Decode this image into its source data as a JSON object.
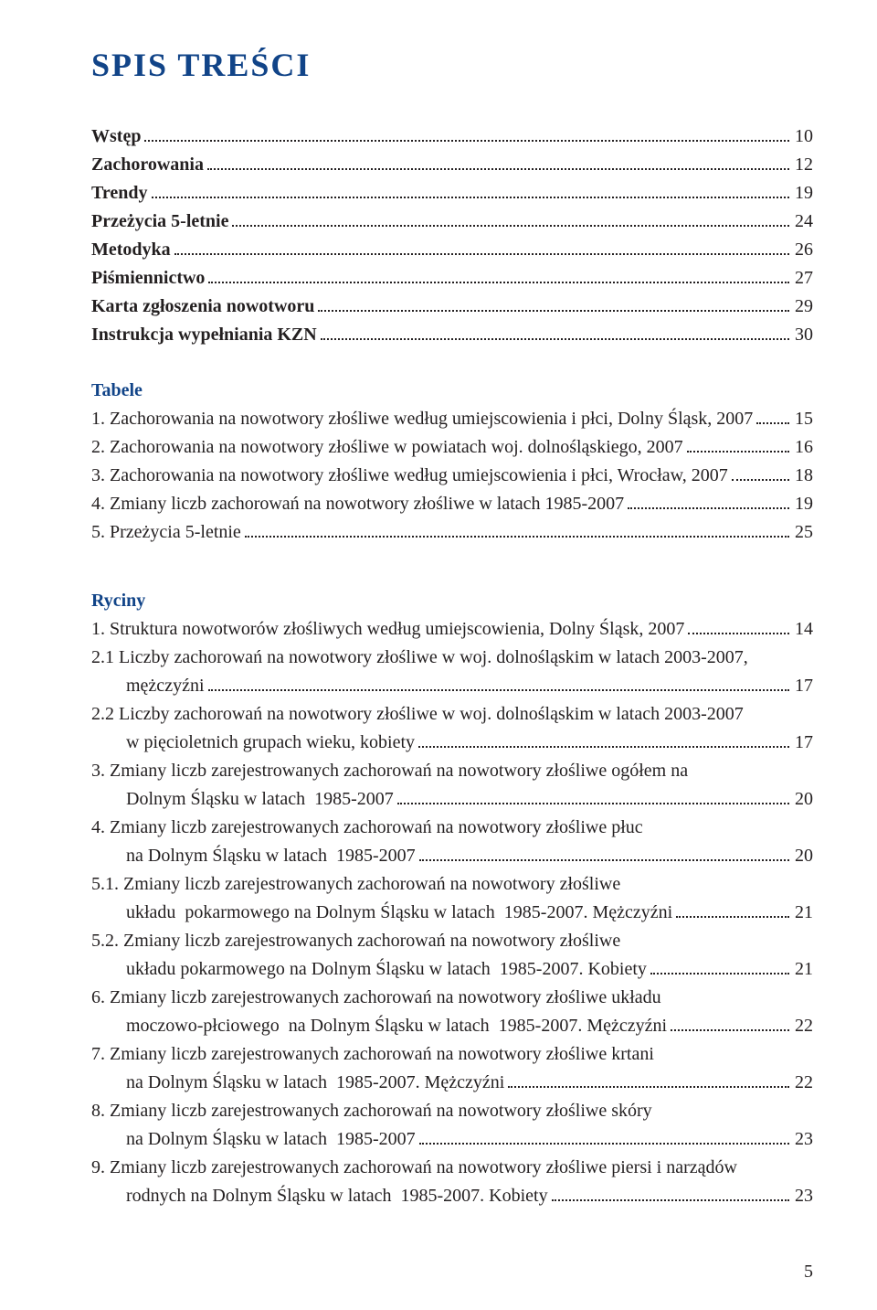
{
  "colors": {
    "heading": "#114488",
    "text": "#231f20",
    "background": "#ffffff",
    "dots": "#231f20"
  },
  "typography": {
    "title_fontsize": 36,
    "body_fontsize": 20,
    "heading_weight": "bold",
    "font_family": "serif"
  },
  "title": "SPIS TREŚCI",
  "main_toc": [
    {
      "label": "Wstęp",
      "page": "10"
    },
    {
      "label": "Zachorowania",
      "page": "12"
    },
    {
      "label": "Trendy",
      "page": "19"
    },
    {
      "label": "Przeżycia 5-letnie",
      "page": "24"
    },
    {
      "label": "Metodyka",
      "page": "26"
    },
    {
      "label": "Piśmiennictwo",
      "page": "27"
    },
    {
      "label": "Karta zgłoszenia nowotworu",
      "page": "29"
    },
    {
      "label": "Instrukcja wypełniania KZN",
      "page": "30"
    }
  ],
  "tabele": {
    "heading": "Tabele",
    "items": [
      {
        "lines": [
          [
            "1. Zachorowania na nowotwory złośliwe według umiejscowienia i płci, Dolny Śląsk, 2007",
            "15"
          ]
        ]
      },
      {
        "lines": [
          [
            "2. Zachorowania na nowotwory złośliwe w powiatach woj. dolnośląskiego, 2007",
            "16"
          ]
        ]
      },
      {
        "lines": [
          [
            "3. Zachorowania na nowotwory złośliwe według umiejscowienia i płci, Wrocław, 2007",
            "18"
          ]
        ]
      },
      {
        "lines": [
          [
            "4. Zmiany liczb zachorowań na nowotwory złośliwe w latach 1985-2007",
            "19"
          ]
        ]
      },
      {
        "lines": [
          [
            "5. Przeżycia 5-letnie",
            "25"
          ]
        ]
      }
    ]
  },
  "ryciny": {
    "heading": "Ryciny",
    "items": [
      {
        "lines": [
          [
            "1. Struktura nowotworów złośliwych według umiejscowienia, Dolny Śląsk, 2007",
            "14"
          ]
        ]
      },
      {
        "lines": [
          [
            "2.1 Liczby zachorowań na nowotwory złośliwe w woj. dolnośląskim w latach 2003-2007,",
            null
          ],
          [
            "mężczyźni",
            "17"
          ]
        ]
      },
      {
        "lines": [
          [
            "2.2 Liczby zachorowań na nowotwory złośliwe w woj. dolnośląskim w latach 2003-2007",
            null
          ],
          [
            "w pięcioletnich grupach wieku, kobiety",
            "17"
          ]
        ]
      },
      {
        "lines": [
          [
            "3. Zmiany liczb zarejestrowanych zachorowań na nowotwory złośliwe ogółem na",
            null
          ],
          [
            "Dolnym Śląsku w latach  1985-2007",
            "20"
          ]
        ]
      },
      {
        "lines": [
          [
            "4. Zmiany liczb zarejestrowanych zachorowań na nowotwory złośliwe płuc",
            null
          ],
          [
            "na Dolnym Śląsku w latach  1985-2007",
            "20"
          ]
        ]
      },
      {
        "lines": [
          [
            "5.1. Zmiany liczb zarejestrowanych zachorowań na nowotwory złośliwe",
            null
          ],
          [
            "układu  pokarmowego na Dolnym Śląsku w latach  1985-2007. Mężczyźni",
            "21"
          ]
        ]
      },
      {
        "lines": [
          [
            "5.2. Zmiany liczb zarejestrowanych zachorowań na nowotwory złośliwe",
            null
          ],
          [
            "układu pokarmowego na Dolnym Śląsku w latach  1985-2007. Kobiety",
            "21"
          ]
        ]
      },
      {
        "lines": [
          [
            "6. Zmiany liczb zarejestrowanych zachorowań na nowotwory złośliwe układu",
            null
          ],
          [
            "moczowo-płciowego  na Dolnym Śląsku w latach  1985-2007. Mężczyźni",
            "22"
          ]
        ]
      },
      {
        "lines": [
          [
            "7. Zmiany liczb zarejestrowanych zachorowań na nowotwory złośliwe krtani",
            null
          ],
          [
            "na Dolnym Śląsku w latach  1985-2007. Mężczyźni",
            "22"
          ]
        ]
      },
      {
        "lines": [
          [
            "8. Zmiany liczb zarejestrowanych zachorowań na nowotwory złośliwe skóry",
            null
          ],
          [
            "na Dolnym Śląsku w latach  1985-2007",
            "23"
          ]
        ]
      },
      {
        "lines": [
          [
            "9. Zmiany liczb zarejestrowanych zachorowań na nowotwory złośliwe piersi i narządów",
            null
          ],
          [
            "rodnych na Dolnym Śląsku w latach  1985-2007. Kobiety",
            "23"
          ]
        ]
      }
    ]
  },
  "page_number": "5"
}
